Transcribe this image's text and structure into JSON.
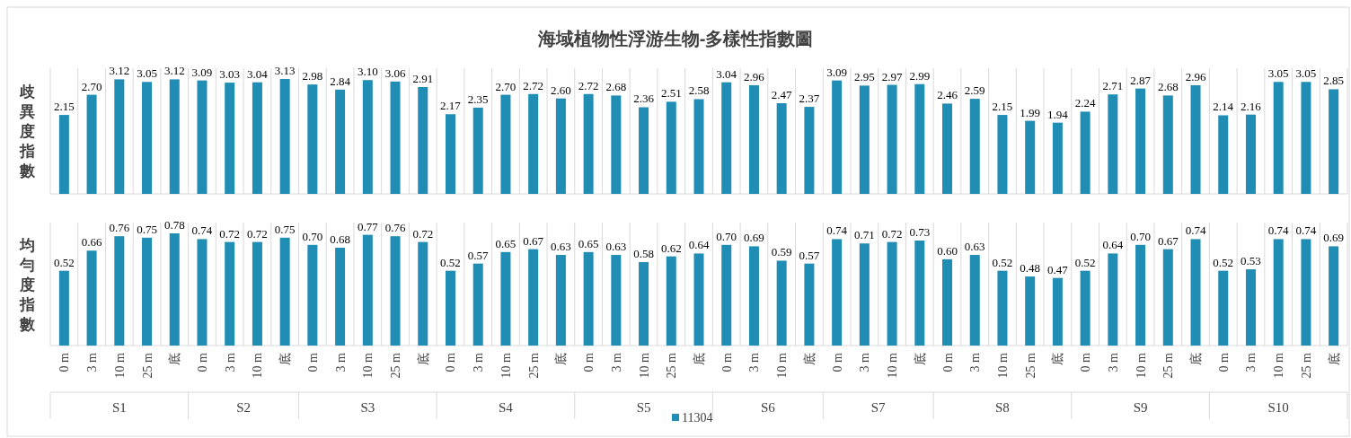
{
  "chart_data": [
    {
      "type": "bar",
      "title": "海域植物性浮游生物-多樣性指數圖",
      "ylabel": "歧異度指數",
      "tick_labels": false,
      "legend": false,
      "categories": [
        null,
        null,
        null,
        null,
        null,
        null,
        null,
        null,
        null,
        null,
        null,
        null,
        null,
        null,
        null,
        null,
        null,
        null,
        null,
        null,
        null,
        null,
        null,
        null,
        null,
        null,
        null,
        null,
        null,
        null,
        null,
        null,
        null,
        null,
        null,
        null,
        null,
        null,
        null,
        null,
        null,
        null,
        null,
        null,
        null,
        null,
        null
      ],
      "series": [
        {
          "color": "#1f8db4",
          "values": [
            2.15,
            2.7,
            3.12,
            3.05,
            3.12,
            3.09,
            3.03,
            3.04,
            3.13,
            2.98,
            2.84,
            3.1,
            3.06,
            2.91,
            2.17,
            2.35,
            2.7,
            2.72,
            2.6,
            2.72,
            2.68,
            2.36,
            2.51,
            2.58,
            3.04,
            2.96,
            2.47,
            2.37,
            3.09,
            2.95,
            2.97,
            2.99,
            2.46,
            2.59,
            2.15,
            1.99,
            1.94,
            2.24,
            2.71,
            2.87,
            2.68,
            2.96,
            2.14,
            2.16,
            3.05,
            3.05,
            2.85
          ],
          "value_labels": [
            "2.15",
            "2.70",
            "3.12",
            "3.05",
            "3.12",
            "3.09",
            "3.03",
            "3.04",
            "3.13",
            "2.98",
            "2.84",
            "3.10",
            "3.06",
            "2.91",
            "2.17",
            "2.35",
            "2.70",
            "2.72",
            "2.60",
            "2.72",
            "2.68",
            "2.36",
            "2.51",
            "2.58",
            "3.04",
            "2.96",
            "2.47",
            "2.37",
            "3.09",
            "2.95",
            "2.97",
            "2.99",
            "2.46",
            "2.59",
            "2.15",
            "1.99",
            "1.94",
            "2.24",
            "2.71",
            "2.87",
            "2.68",
            "2.96",
            "2.14",
            "2.16",
            "3.05",
            "3.05",
            "2.85"
          ]
        }
      ]
    },
    {
      "type": "bar",
      "ylabel": "均勻度指數",
      "tick_labels": "x",
      "legend": "bottom",
      "categories": [
        "0 m",
        "3 m",
        "10 m",
        "25 m",
        "底",
        "0 m",
        "3 m",
        "10 m",
        "底",
        "0 m",
        "3 m",
        "10 m",
        "25 m",
        "底",
        "0 m",
        "3 m",
        "10 m",
        "25 m",
        "底",
        "0 m",
        "3 m",
        "10 m",
        "25 m",
        "底",
        "0 m",
        "3 m",
        "10 m",
        "底",
        "0 m",
        "3 m",
        "10 m",
        "底",
        "0 m",
        "3 m",
        "10 m",
        "25 m",
        "底",
        "0 m",
        "3 m",
        "10 m",
        "25 m",
        "底",
        "0 m",
        "3 m",
        "10 m",
        "25 m",
        "底"
      ],
      "series": [
        {
          "name": "11304",
          "color": "#1f8db4",
          "values": [
            0.52,
            0.66,
            0.76,
            0.75,
            0.78,
            0.74,
            0.72,
            0.72,
            0.75,
            0.7,
            0.68,
            0.77,
            0.76,
            0.72,
            0.52,
            0.57,
            0.65,
            0.67,
            0.63,
            0.65,
            0.63,
            0.58,
            0.62,
            0.64,
            0.7,
            0.69,
            0.59,
            0.57,
            0.74,
            0.71,
            0.72,
            0.73,
            0.6,
            0.63,
            0.52,
            0.48,
            0.47,
            0.52,
            0.64,
            0.7,
            0.67,
            0.74,
            0.52,
            0.53,
            0.74,
            0.74,
            0.69
          ],
          "value_labels": [
            "0.52",
            "0.66",
            "0.76",
            "0.75",
            "0.78",
            "0.74",
            "0.72",
            "0.72",
            "0.75",
            "0.70",
            "0.68",
            "0.77",
            "0.76",
            "0.72",
            "0.52",
            "0.57",
            "0.65",
            "0.67",
            "0.63",
            "0.65",
            "0.63",
            "0.58",
            "0.62",
            "0.64",
            "0.70",
            "0.69",
            "0.59",
            "0.57",
            "0.74",
            "0.71",
            "0.72",
            "0.73",
            "0.60",
            "0.63",
            "0.52",
            "0.48",
            "0.47",
            "0.52",
            "0.64",
            "0.70",
            "0.67",
            "0.74",
            "0.52",
            "0.53",
            "0.74",
            "0.74",
            "0.69"
          ]
        }
      ],
      "annotations": [
        "S1",
        "S2",
        "S3",
        "S4",
        "S5",
        "S6",
        "S7",
        "S8",
        "S9",
        "S10"
      ]
    }
  ]
}
